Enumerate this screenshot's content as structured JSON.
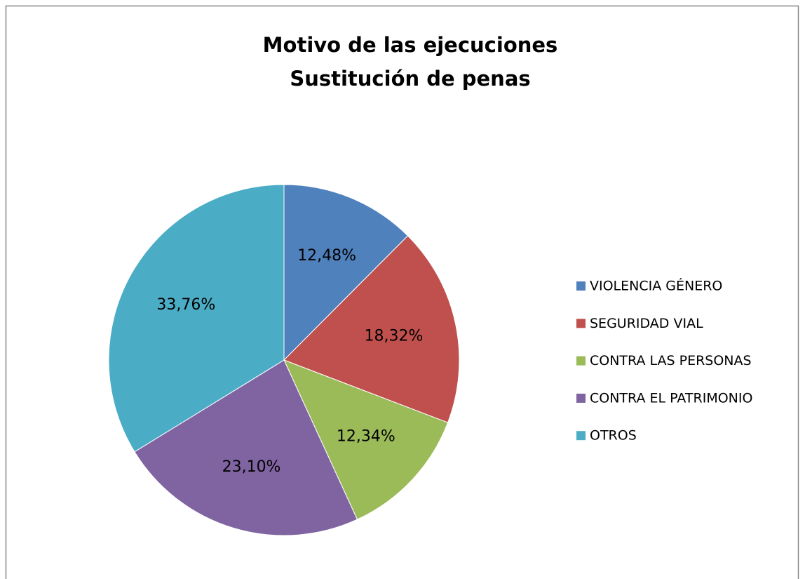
{
  "chart_data": {
    "type": "pie",
    "title": [
      "Motivo de las ejecuciones",
      "Sustitución de penas"
    ],
    "categories": [
      "VIOLENCIA GÉNERO",
      "SEGURIDAD VIAL",
      "CONTRA LAS PERSONAS",
      "CONTRA EL PATRIMONIO",
      "OTROS"
    ],
    "values": [
      12.48,
      18.32,
      12.34,
      23.1,
      33.76
    ],
    "value_labels": [
      "12,48%",
      "18,32%",
      "12,34%",
      "23,10%",
      "33,76%"
    ],
    "colors": [
      "#4f81bd",
      "#c0504d",
      "#9bbb59",
      "#8064a2",
      "#4bacc6"
    ],
    "legend": "right"
  }
}
